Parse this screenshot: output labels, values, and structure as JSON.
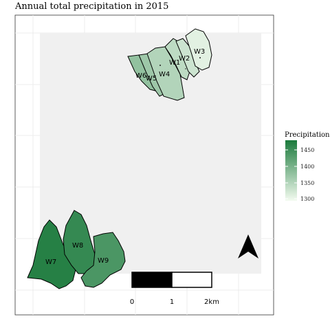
{
  "title": "Annual total precipitation in 2015",
  "legend": {
    "title": "Precipitation",
    "ticks": [
      "1450",
      "1400",
      "1350",
      "1300"
    ],
    "colors": {
      "high": "#1b7a3c",
      "low": "#f3fbf0"
    }
  },
  "watersheds": [
    {
      "id": "W1",
      "label": "W1",
      "level": 0.25
    },
    {
      "id": "W2",
      "label": "W2",
      "level": 0.18
    },
    {
      "id": "W3",
      "label": "W3",
      "level": 0.08
    },
    {
      "id": "W4",
      "label": "W4",
      "level": 0.3
    },
    {
      "id": "W5",
      "label": "W5",
      "level": 0.4
    },
    {
      "id": "W6",
      "label": "W6",
      "level": 0.45
    },
    {
      "id": "W7",
      "label": "W7",
      "level": 0.95
    },
    {
      "id": "W8",
      "label": "W8",
      "level": 0.88
    },
    {
      "id": "W9",
      "label": "W9",
      "level": 0.78
    }
  ],
  "scalebar": {
    "labels": [
      "0",
      "1",
      "2km"
    ]
  },
  "north_arrow": {
    "icon": "north-arrow-icon"
  }
}
